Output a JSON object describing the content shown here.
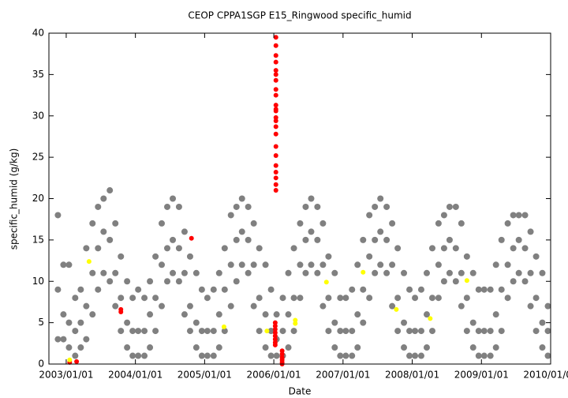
{
  "chart_data": {
    "type": "scatter",
    "title": "CEOP CPPA1SGP E15_Ringwood  specific_humid",
    "x_label": "Date",
    "y_label": "specific_humid (g/kg)",
    "xlim": [
      2002.75,
      2010.0
    ],
    "xticks": [
      {
        "value": 2003,
        "label": "2003/01/01"
      },
      {
        "value": 2004,
        "label": "2004/01/01"
      },
      {
        "value": 2005,
        "label": "2005/01/01"
      },
      {
        "value": 2006,
        "label": "2006/01/01"
      },
      {
        "value": 2007,
        "label": "2007/01/01"
      },
      {
        "value": 2008,
        "label": "2008/01/01"
      },
      {
        "value": 2009,
        "label": "2009/01/01"
      },
      {
        "value": 2010,
        "label": "2010/01/01"
      }
    ],
    "ylim": [
      0,
      40
    ],
    "yticks": [
      0,
      5,
      10,
      15,
      20,
      25,
      30,
      35,
      40
    ],
    "series": [
      {
        "color": "#808080",
        "x": [
          2002.88,
          2002.88,
          2002.88,
          2002.96,
          2002.96,
          2002.96,
          2003.04,
          2003.04,
          2003.04,
          2003.13,
          2003.13,
          2003.13,
          2003.21,
          2003.21,
          2003.21,
          2003.29,
          2003.29,
          2003.29,
          2003.38,
          2003.38,
          2003.38,
          2003.46,
          2003.46,
          2003.46,
          2003.54,
          2003.54,
          2003.54,
          2003.63,
          2003.63,
          2003.63,
          2003.71,
          2003.71,
          2003.71,
          2003.79,
          2003.79,
          2003.79,
          2003.88,
          2003.88,
          2003.88,
          2003.96,
          2003.96,
          2003.96,
          2004.04,
          2004.04,
          2004.04,
          2004.13,
          2004.13,
          2004.13,
          2004.21,
          2004.21,
          2004.21,
          2004.29,
          2004.29,
          2004.29,
          2004.38,
          2004.38,
          2004.38,
          2004.46,
          2004.46,
          2004.46,
          2004.54,
          2004.54,
          2004.54,
          2004.63,
          2004.63,
          2004.63,
          2004.71,
          2004.71,
          2004.71,
          2004.79,
          2004.79,
          2004.79,
          2004.88,
          2004.88,
          2004.88,
          2004.96,
          2004.96,
          2004.96,
          2005.04,
          2005.04,
          2005.04,
          2005.13,
          2005.13,
          2005.13,
          2005.21,
          2005.21,
          2005.21,
          2005.29,
          2005.29,
          2005.29,
          2005.38,
          2005.38,
          2005.38,
          2005.46,
          2005.46,
          2005.46,
          2005.54,
          2005.54,
          2005.54,
          2005.63,
          2005.63,
          2005.63,
          2005.71,
          2005.71,
          2005.71,
          2005.79,
          2005.79,
          2005.79,
          2005.88,
          2005.88,
          2005.88,
          2005.96,
          2005.96,
          2005.96,
          2006.04,
          2006.04,
          2006.04,
          2006.13,
          2006.13,
          2006.13,
          2006.21,
          2006.21,
          2006.21,
          2006.29,
          2006.29,
          2006.29,
          2006.38,
          2006.38,
          2006.38,
          2006.46,
          2006.46,
          2006.46,
          2006.54,
          2006.54,
          2006.54,
          2006.63,
          2006.63,
          2006.63,
          2006.71,
          2006.71,
          2006.71,
          2006.79,
          2006.79,
          2006.79,
          2006.88,
          2006.88,
          2006.88,
          2006.96,
          2006.96,
          2006.96,
          2007.04,
          2007.04,
          2007.04,
          2007.13,
          2007.13,
          2007.13,
          2007.21,
          2007.21,
          2007.21,
          2007.29,
          2007.29,
          2007.29,
          2007.38,
          2007.38,
          2007.38,
          2007.46,
          2007.46,
          2007.46,
          2007.54,
          2007.54,
          2007.54,
          2007.63,
          2007.63,
          2007.63,
          2007.71,
          2007.71,
          2007.71,
          2007.79,
          2007.79,
          2007.79,
          2007.88,
          2007.88,
          2007.88,
          2007.96,
          2007.96,
          2007.96,
          2008.04,
          2008.04,
          2008.04,
          2008.13,
          2008.13,
          2008.13,
          2008.21,
          2008.21,
          2008.21,
          2008.29,
          2008.29,
          2008.29,
          2008.38,
          2008.38,
          2008.38,
          2008.46,
          2008.46,
          2008.46,
          2008.54,
          2008.54,
          2008.54,
          2008.63,
          2008.63,
          2008.63,
          2008.71,
          2008.71,
          2008.71,
          2008.79,
          2008.79,
          2008.79,
          2008.88,
          2008.88,
          2008.88,
          2008.96,
          2008.96,
          2008.96,
          2009.04,
          2009.04,
          2009.04,
          2009.13,
          2009.13,
          2009.13,
          2009.21,
          2009.21,
          2009.21,
          2009.29,
          2009.29,
          2009.29,
          2009.38,
          2009.38,
          2009.38,
          2009.46,
          2009.46,
          2009.46,
          2009.54,
          2009.54,
          2009.54,
          2009.63,
          2009.63,
          2009.63,
          2009.71,
          2009.71,
          2009.71,
          2009.79,
          2009.79,
          2009.79,
          2009.88,
          2009.88,
          2009.88,
          2009.96,
          2009.96,
          2009.96
        ],
        "values": [
          3,
          9,
          18,
          3,
          6,
          12,
          2,
          5,
          12,
          1,
          4,
          8,
          2,
          5,
          9,
          3,
          7,
          14,
          6,
          11,
          17,
          9,
          14,
          19,
          11,
          16,
          20,
          10,
          15,
          21,
          7,
          11,
          17,
          4,
          8,
          13,
          2,
          5,
          10,
          1,
          4,
          8,
          1,
          4,
          9,
          1,
          4,
          8,
          2,
          6,
          10,
          4,
          8,
          13,
          7,
          12,
          17,
          10,
          14,
          19,
          11,
          15,
          20,
          10,
          14,
          19,
          6,
          11,
          16,
          4,
          7,
          13,
          2,
          5,
          11,
          1,
          4,
          9,
          1,
          4,
          8,
          1,
          4,
          9,
          2,
          6,
          11,
          4,
          9,
          14,
          7,
          12,
          18,
          10,
          15,
          19,
          12,
          16,
          20,
          11,
          15,
          19,
          7,
          12,
          17,
          4,
          8,
          14,
          2,
          6,
          12,
          1,
          4,
          9,
          1,
          3,
          6,
          1,
          4,
          8,
          2,
          6,
          11,
          4,
          8,
          14,
          8,
          12,
          17,
          11,
          15,
          19,
          12,
          16,
          20,
          11,
          15,
          19,
          7,
          12,
          17,
          4,
          8,
          13,
          2,
          5,
          11,
          1,
          4,
          8,
          1,
          4,
          8,
          1,
          4,
          9,
          2,
          6,
          12,
          5,
          9,
          15,
          8,
          13,
          18,
          11,
          15,
          19,
          12,
          16,
          20,
          11,
          15,
          19,
          7,
          12,
          17,
          4,
          8,
          14,
          2,
          5,
          11,
          1,
          4,
          9,
          1,
          4,
          8,
          1,
          4,
          9,
          2,
          6,
          11,
          4,
          8,
          14,
          8,
          12,
          17,
          10,
          14,
          18,
          11,
          15,
          19,
          10,
          14,
          19,
          7,
          11,
          17,
          4,
          8,
          13,
          2,
          5,
          11,
          1,
          4,
          9,
          1,
          4,
          9,
          1,
          4,
          9,
          2,
          6,
          12,
          4,
          9,
          15,
          8,
          12,
          17,
          10,
          14,
          18,
          11,
          15,
          18,
          10,
          14,
          18,
          7,
          11,
          16,
          4,
          8,
          13,
          2,
          5,
          11,
          1,
          4,
          7
        ]
      },
      {
        "color": "#ff0000",
        "x": [
          2003.05,
          2003.15,
          2003.79,
          2003.79,
          2004.81,
          2006.03,
          2006.03,
          2006.03,
          2006.03,
          2006.03,
          2006.03,
          2006.03,
          2006.03,
          2006.03,
          2006.03,
          2006.03,
          2006.03,
          2006.03,
          2006.03,
          2006.03,
          2006.03,
          2006.03,
          2006.03,
          2006.03,
          2006.03,
          2006.03,
          2006.03,
          2006.03,
          2006.02,
          2006.02,
          2006.02,
          2006.02,
          2006.02,
          2006.02,
          2006.02,
          2006.02,
          2006.12,
          2006.12,
          2006.12,
          2006.12,
          2006.12,
          2006.12
        ],
        "values": [
          0.2,
          0.3,
          6.6,
          6.3,
          15.2,
          39.5,
          38.5,
          37.3,
          36.5,
          35.5,
          35,
          34.3,
          33.2,
          32.5,
          31.3,
          30.8,
          30.6,
          29.8,
          29.4,
          28.7,
          27.8,
          26.3,
          25.2,
          24,
          23.2,
          22.5,
          21.7,
          21,
          5.0,
          4.6,
          4.2,
          3.8,
          3.4,
          3.0,
          2.6,
          2.3,
          1.6,
          1.2,
          0.8,
          0.5,
          0.2,
          0.0
        ]
      },
      {
        "color": "#ffff00",
        "x": [
          2003.05,
          2003.33,
          2005.28,
          2005.9,
          2006.31,
          2006.31,
          2006.76,
          2007.29,
          2007.77,
          2008.26,
          2008.79
        ],
        "values": [
          0.5,
          12.4,
          4.5,
          4.0,
          5.3,
          4.9,
          9.9,
          11.1,
          6.6,
          5.5,
          10.1
        ]
      }
    ]
  }
}
